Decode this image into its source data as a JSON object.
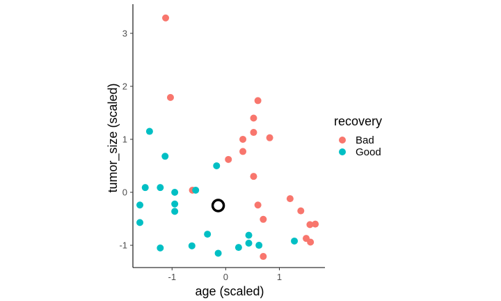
{
  "chart_data": {
    "type": "scatter",
    "xlabel": "age (scaled)",
    "ylabel": "tumor_size (scaled)",
    "xlim": [
      -1.73,
      1.85
    ],
    "ylim": [
      -1.42,
      3.55
    ],
    "x_ticks": [
      -1,
      0,
      1
    ],
    "y_ticks": [
      -1,
      0,
      1,
      2,
      3
    ],
    "grid": false,
    "legend": {
      "title": "recovery",
      "placement": "right",
      "items": [
        "Bad",
        "Good"
      ]
    },
    "series": [
      {
        "name": "Bad",
        "color": "#F8766D",
        "points": [
          {
            "x": -1.12,
            "y": 3.29
          },
          {
            "x": -1.03,
            "y": 1.79
          },
          {
            "x": 0.6,
            "y": 1.73
          },
          {
            "x": 0.52,
            "y": 1.4
          },
          {
            "x": 0.52,
            "y": 1.13
          },
          {
            "x": 0.82,
            "y": 1.03
          },
          {
            "x": 0.32,
            "y": 1.0
          },
          {
            "x": 0.32,
            "y": 0.77
          },
          {
            "x": 0.05,
            "y": 0.62
          },
          {
            "x": 0.52,
            "y": 0.3
          },
          {
            "x": -0.62,
            "y": 0.04
          },
          {
            "x": 1.2,
            "y": -0.12
          },
          {
            "x": 0.6,
            "y": -0.24
          },
          {
            "x": 1.4,
            "y": -0.35
          },
          {
            "x": 0.7,
            "y": -0.51
          },
          {
            "x": 1.57,
            "y": -0.61
          },
          {
            "x": 1.67,
            "y": -0.6
          },
          {
            "x": 1.5,
            "y": -0.87
          },
          {
            "x": 1.58,
            "y": -0.94
          },
          {
            "x": 0.7,
            "y": -1.21
          }
        ]
      },
      {
        "name": "Good",
        "color": "#00BFC4",
        "points": [
          {
            "x": -1.42,
            "y": 1.15
          },
          {
            "x": -1.13,
            "y": 0.68
          },
          {
            "x": -0.17,
            "y": 0.5
          },
          {
            "x": -1.5,
            "y": 0.09
          },
          {
            "x": -1.22,
            "y": 0.09
          },
          {
            "x": -0.56,
            "y": 0.04
          },
          {
            "x": -0.95,
            "y": 0.0
          },
          {
            "x": -1.6,
            "y": -0.24
          },
          {
            "x": -0.95,
            "y": -0.22
          },
          {
            "x": -0.95,
            "y": -0.36
          },
          {
            "x": -1.6,
            "y": -0.57
          },
          {
            "x": -0.34,
            "y": -0.79
          },
          {
            "x": 0.43,
            "y": -0.81
          },
          {
            "x": 1.28,
            "y": -0.92
          },
          {
            "x": 0.43,
            "y": -0.96
          },
          {
            "x": 0.62,
            "y": -1.0
          },
          {
            "x": -0.63,
            "y": -1.01
          },
          {
            "x": 0.24,
            "y": -1.04
          },
          {
            "x": -1.22,
            "y": -1.05
          },
          {
            "x": -0.14,
            "y": -1.15
          }
        ]
      }
    ],
    "highlight": {
      "x": -0.14,
      "y": -0.25,
      "color": "#000000"
    }
  }
}
